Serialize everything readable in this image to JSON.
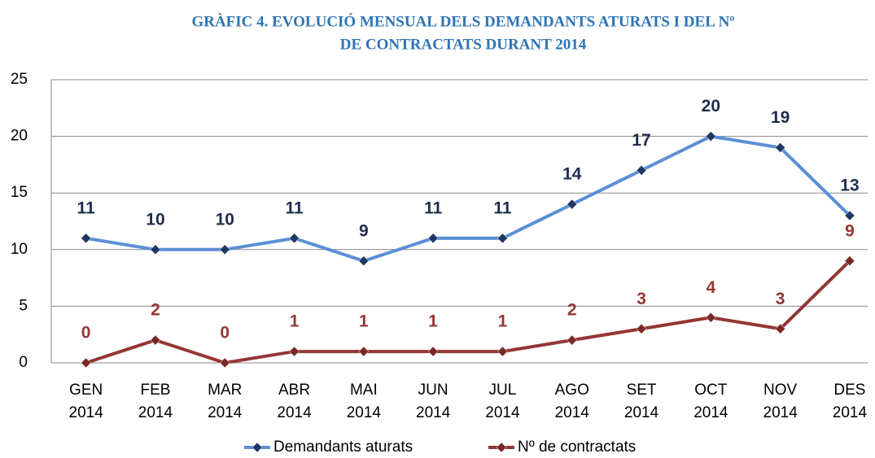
{
  "chart_data": {
    "type": "line",
    "title": [
      "GRÀFIC 4. EVOLUCIÓ MENSUAL DELS DEMANDANTS ATURATS I DEL Nº",
      "DE CONTRACTATS DURANT 2014"
    ],
    "categories": [
      "GEN 2014",
      "FEB 2014",
      "MAR 2014",
      "ABR 2014",
      "MAI 2014",
      "JUN 2014",
      "JUL 2014",
      "AGO 2014",
      "SET 2014",
      "OCT 2014",
      "NOV 2014",
      "DES 2014"
    ],
    "series": [
      {
        "name": "Demandants aturats",
        "color": "#5b8fd6",
        "marker_color": "#1f3864",
        "label_color": "#1f2d4d",
        "values": [
          11,
          10,
          10,
          11,
          9,
          11,
          11,
          14,
          17,
          20,
          19,
          13
        ]
      },
      {
        "name": "Nº de contractats",
        "color": "#943634",
        "marker_color": "#7a2828",
        "label_color": "#943634",
        "values": [
          0,
          2,
          0,
          1,
          1,
          1,
          1,
          2,
          3,
          4,
          3,
          9
        ]
      }
    ],
    "ylim": [
      0,
      25
    ],
    "yticks": [
      0,
      5,
      10,
      15,
      20,
      25
    ],
    "grid": true,
    "legend": "bottom"
  }
}
